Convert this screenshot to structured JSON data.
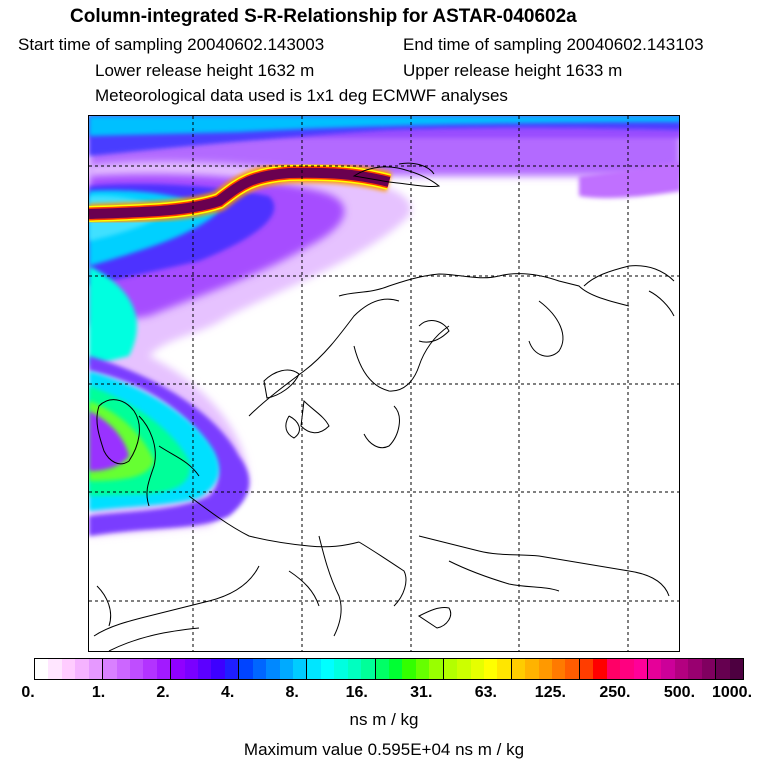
{
  "header": {
    "title": "Column-integrated S-R-Relationship for ASTAR-040602a",
    "start_time": "Start time of sampling 20040602.143003",
    "end_time": "End time of sampling 20040602.143103",
    "lower_height": "Lower release height 1632 m",
    "upper_height": "Upper release height 1633 m",
    "met_data": "Meteorological data used is 1x1 deg ECMWF analyses"
  },
  "colorbar": {
    "tick_labels": [
      "0.",
      "1.",
      "2.",
      "4.",
      "8.",
      "16.",
      "31.",
      "63.",
      "125.",
      "250.",
      "500.",
      "1000."
    ],
    "colors": [
      "#ffffff",
      "#ffe6ff",
      "#ffccff",
      "#f5b3ff",
      "#e699ff",
      "#d980ff",
      "#cc66ff",
      "#bf4dff",
      "#b333ff",
      "#a21aff",
      "#9000ff",
      "#7a00ff",
      "#5c00ff",
      "#3d00ff",
      "#1f1fff",
      "#0044ff",
      "#0066ff",
      "#0088ff",
      "#00aaff",
      "#00ccff",
      "#00e6ff",
      "#00ffff",
      "#00ffe0",
      "#00ffc0",
      "#00ff99",
      "#00ff66",
      "#00ff33",
      "#33ff00",
      "#66ff00",
      "#99ff00",
      "#b3ff00",
      "#ccff00",
      "#e6ff00",
      "#ffff00",
      "#ffe600",
      "#ffcc00",
      "#ffb300",
      "#ff9900",
      "#ff7a00",
      "#ff5c00",
      "#ff3d00",
      "#ff0000",
      "#ff0066",
      "#ff0080",
      "#ff0099",
      "#e60099",
      "#cc0099",
      "#b30080",
      "#990070",
      "#800060",
      "#660050",
      "#4d0040"
    ],
    "units": "ns m / kg"
  },
  "max_value": "Maximum value  0.595E+04 ns m / kg"
}
